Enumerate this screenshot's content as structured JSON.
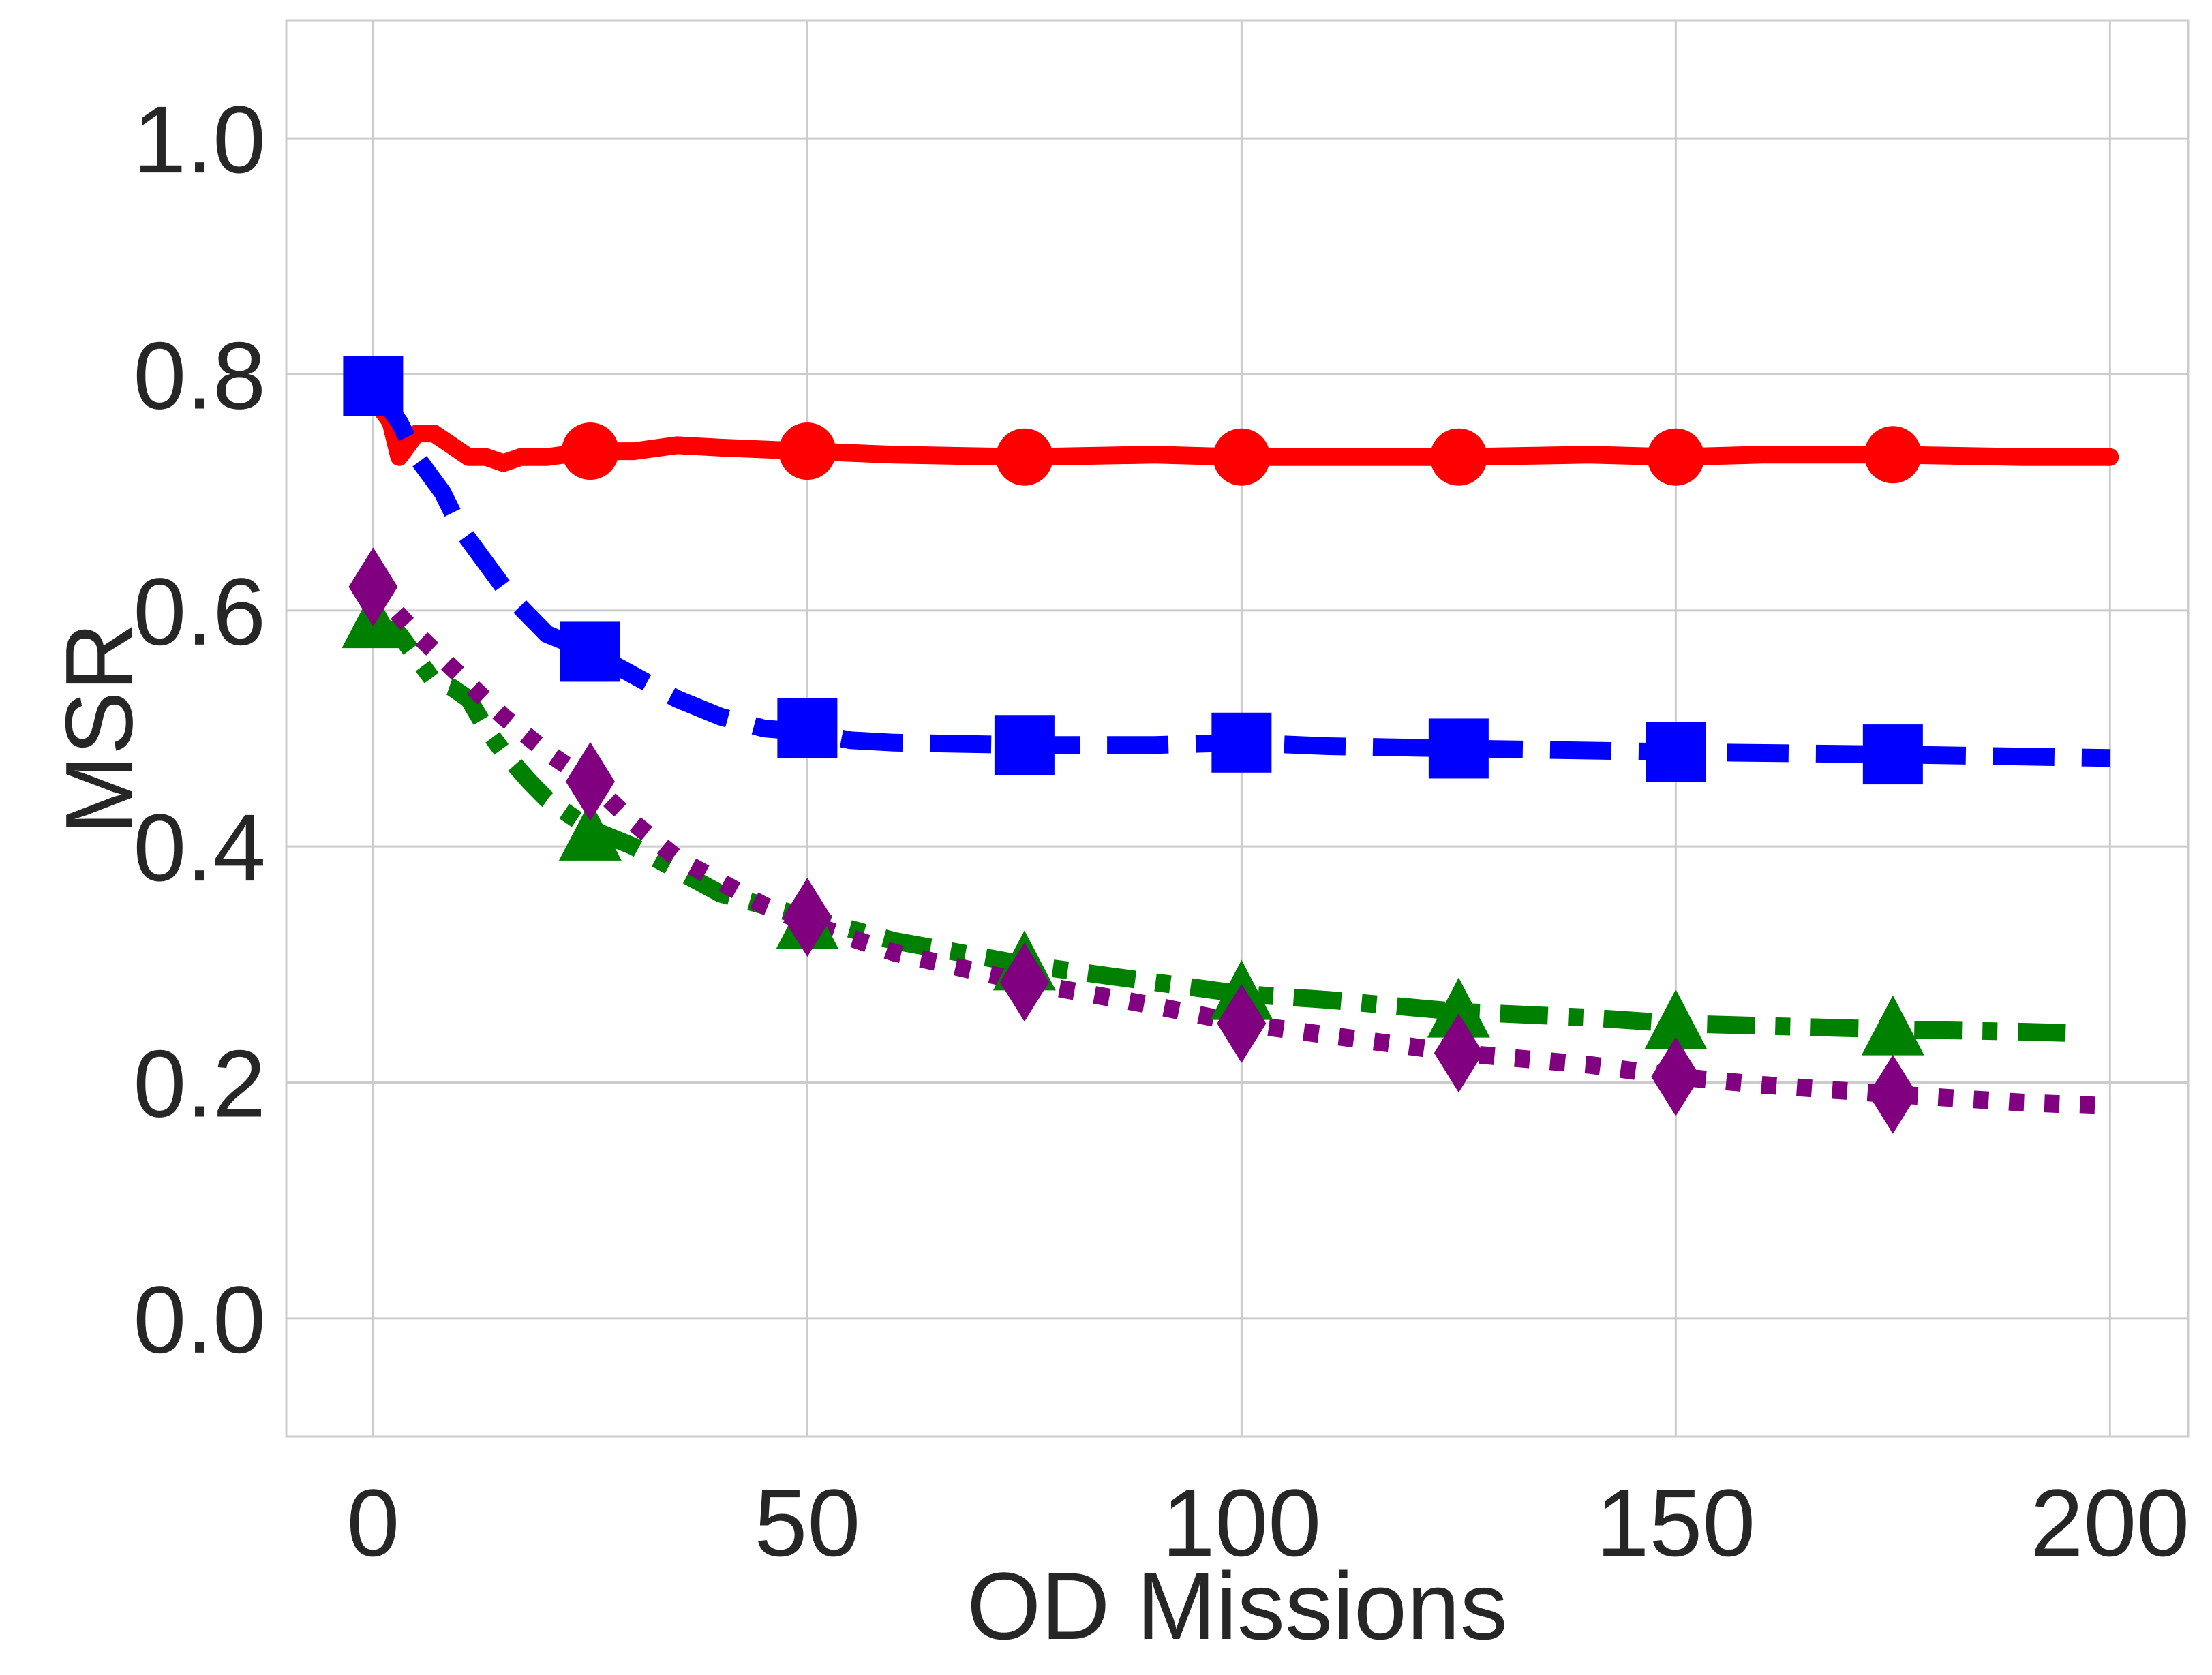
{
  "chart_data": {
    "type": "line",
    "title": "",
    "xlabel": "OD Missions",
    "ylabel": "MSR",
    "xlim": [
      -10,
      209
    ],
    "ylim": [
      -0.1,
      1.1
    ],
    "xticks": [
      0,
      50,
      100,
      150,
      200
    ],
    "yticks": [
      0.0,
      0.2,
      0.4,
      0.6,
      0.8,
      1.0
    ],
    "xtick_labels": [
      "0",
      "50",
      "100",
      "150",
      "200"
    ],
    "ytick_labels": [
      "0.0",
      "0.2",
      "0.4",
      "0.6",
      "0.8",
      "1.0"
    ],
    "grid": true,
    "series": [
      {
        "name": "red-solid-circle",
        "color": "#ff0000",
        "dash": "solid",
        "marker": "circle",
        "x": [
          0,
          2,
          3,
          5,
          7,
          9,
          11,
          13,
          15,
          17,
          20,
          25,
          30,
          35,
          40,
          50,
          60,
          75,
          90,
          100,
          110,
          125,
          140,
          150,
          160,
          175,
          190,
          200
        ],
        "y": [
          0.78,
          0.76,
          0.73,
          0.75,
          0.75,
          0.74,
          0.73,
          0.73,
          0.725,
          0.73,
          0.73,
          0.735,
          0.735,
          0.74,
          0.738,
          0.735,
          0.732,
          0.73,
          0.732,
          0.73,
          0.73,
          0.73,
          0.732,
          0.73,
          0.732,
          0.732,
          0.73,
          0.73
        ],
        "marker_x": [
          25,
          50,
          75,
          100,
          125,
          150,
          175
        ],
        "marker_y": [
          0.735,
          0.735,
          0.73,
          0.73,
          0.73,
          0.73,
          0.732
        ]
      },
      {
        "name": "blue-dashed-square",
        "color": "#0000ff",
        "dash": "dashed",
        "marker": "square",
        "x": [
          0,
          3,
          5,
          8,
          10,
          13,
          16,
          20,
          25,
          30,
          35,
          40,
          45,
          50,
          55,
          60,
          75,
          90,
          100,
          110,
          125,
          150,
          175,
          200
        ],
        "y": [
          0.79,
          0.76,
          0.73,
          0.7,
          0.67,
          0.64,
          0.61,
          0.58,
          0.565,
          0.545,
          0.525,
          0.51,
          0.5,
          0.497,
          0.49,
          0.488,
          0.486,
          0.486,
          0.488,
          0.485,
          0.483,
          0.48,
          0.478,
          0.475
        ],
        "marker_x": [
          0,
          25,
          50,
          75,
          100,
          125,
          150,
          175
        ],
        "marker_y": [
          0.79,
          0.565,
          0.5,
          0.486,
          0.488,
          0.483,
          0.48,
          0.478
        ]
      },
      {
        "name": "green-dashdot-triangle",
        "color": "#008000",
        "dash": "dashdot",
        "marker": "triangle",
        "x": [
          0,
          3,
          5,
          7,
          9,
          11,
          13,
          15,
          18,
          20,
          25,
          30,
          35,
          40,
          45,
          50,
          60,
          75,
          85,
          100,
          110,
          125,
          140,
          150,
          160,
          175,
          190,
          195
        ],
        "y": [
          0.59,
          0.58,
          0.56,
          0.54,
          0.535,
          0.525,
          0.5,
          0.48,
          0.455,
          0.44,
          0.415,
          0.4,
          0.38,
          0.36,
          0.35,
          0.34,
          0.32,
          0.3,
          0.29,
          0.275,
          0.27,
          0.26,
          0.255,
          0.25,
          0.248,
          0.245,
          0.243,
          0.242
        ],
        "marker_x": [
          0,
          25,
          50,
          75,
          100,
          125,
          150,
          175
        ],
        "marker_y": [
          0.59,
          0.41,
          0.335,
          0.3,
          0.275,
          0.26,
          0.25,
          0.245
        ]
      },
      {
        "name": "purple-dotted-diamond",
        "color": "#800080",
        "dash": "dotted",
        "marker": "diamond",
        "x": [
          0,
          5,
          10,
          15,
          20,
          25,
          30,
          35,
          40,
          45,
          50,
          60,
          75,
          90,
          100,
          110,
          125,
          140,
          150,
          160,
          175,
          190,
          200
        ],
        "y": [
          0.62,
          0.58,
          0.545,
          0.51,
          0.48,
          0.455,
          0.42,
          0.39,
          0.37,
          0.35,
          0.335,
          0.31,
          0.285,
          0.265,
          0.25,
          0.24,
          0.225,
          0.215,
          0.205,
          0.198,
          0.19,
          0.183,
          0.18
        ],
        "marker_x": [
          0,
          25,
          50,
          75,
          100,
          125,
          150,
          175
        ],
        "marker_y": [
          0.62,
          0.455,
          0.34,
          0.285,
          0.25,
          0.225,
          0.205,
          0.19
        ]
      }
    ]
  }
}
